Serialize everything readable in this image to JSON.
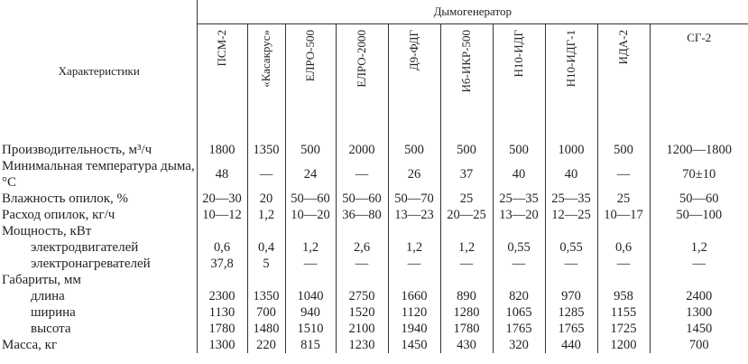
{
  "header": {
    "row_label": "Характеристики",
    "group": "Дымогенератор",
    "columns": [
      "ПСМ-2",
      "«Касакрус»",
      "ЕЛРО-500",
      "ЕЛРО-2000",
      "Д9-ФДГ",
      "Иб-ИКР-500",
      "Н10-ИДГ",
      "Н10-ИДГ-1",
      "ИДА-2",
      "СГ-2"
    ]
  },
  "rows": [
    {
      "label": "Производительность, м³/ч",
      "values": [
        "1800",
        "1350",
        "500",
        "2000",
        "500",
        "500",
        "500",
        "1000",
        "500",
        "1200—1800"
      ]
    },
    {
      "label": "Минимальная температура дыма, °С",
      "values": [
        "48",
        "—",
        "24",
        "—",
        "26",
        "37",
        "40",
        "40",
        "—",
        "70±10"
      ]
    },
    {
      "label": "Влажность опилок, %",
      "values": [
        "20—30",
        "20",
        "50—60",
        "50—60",
        "50—70",
        "25",
        "25—35",
        "25—35",
        "25",
        "50—60"
      ]
    },
    {
      "label": "Расход опилок, кг/ч",
      "values": [
        "10—12",
        "1,2",
        "10—20",
        "36—80",
        "13—23",
        "20—25",
        "13—20",
        "12—25",
        "10—17",
        "50—100"
      ]
    },
    {
      "label": "Мощность, кВт"
    },
    {
      "label": "электродвигателей",
      "values": [
        "0,6",
        "0,4",
        "1,2",
        "2,6",
        "1,2",
        "1,2",
        "0,55",
        "0,55",
        "0,6",
        "1,2"
      ]
    },
    {
      "label": "электронагревателей",
      "values": [
        "37,8",
        "5",
        "—",
        "—",
        "—",
        "—",
        "—",
        "—",
        "—",
        "—"
      ]
    },
    {
      "label": "Габариты, мм"
    },
    {
      "label": "длина",
      "values": [
        "2300",
        "1350",
        "1040",
        "2750",
        "1660",
        "890",
        "820",
        "970",
        "958",
        "2400"
      ]
    },
    {
      "label": "ширина",
      "values": [
        "1130",
        "700",
        "940",
        "1520",
        "1120",
        "1280",
        "1065",
        "1285",
        "1155",
        "1300"
      ]
    },
    {
      "label": "высота",
      "values": [
        "1780",
        "1480",
        "1510",
        "2100",
        "1940",
        "1780",
        "1765",
        "1765",
        "1725",
        "1450"
      ]
    },
    {
      "label": "Масса, кг",
      "values": [
        "1300",
        "220",
        "815",
        "1230",
        "1450",
        "430",
        "320",
        "440",
        "1200",
        "700"
      ]
    }
  ]
}
